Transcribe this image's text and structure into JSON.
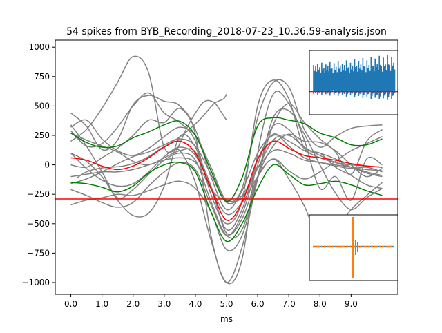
{
  "chart_data": [
    {
      "type": "line",
      "title": "54 spikes from BYB_Recording_2018-07-23_10.36.59-analysis.json",
      "xlabel": "ms",
      "ylabel": "",
      "xlim": [
        -0.5,
        10.5
      ],
      "ylim": [
        -1100,
        1060
      ],
      "xticks": [
        "0.0",
        "1.0",
        "2.0",
        "3.0",
        "4.0",
        "5.0",
        "6.0",
        "7.0",
        "8.0",
        "9.0"
      ],
      "yticks": [
        "−1000",
        "−750",
        "−500",
        "−250",
        "0",
        "250",
        "500",
        "750",
        "1000"
      ],
      "grid": false,
      "legend": "none",
      "threshold": -290,
      "colors": {
        "traces": "#808080",
        "mean": "#ff0000",
        "band": "#008000",
        "threshold": "#ff0000"
      },
      "series": [
        {
          "role": "mean",
          "x": [
            0,
            0.5,
            1,
            1.5,
            2,
            2.5,
            3,
            3.5,
            4,
            4.5,
            5,
            5.5,
            6,
            6.5,
            7,
            7.5,
            8,
            8.5,
            9,
            9.5,
            10
          ],
          "values": [
            60,
            40,
            -10,
            -40,
            -10,
            60,
            150,
            200,
            100,
            -200,
            -470,
            -320,
            50,
            200,
            140,
            80,
            60,
            40,
            10,
            -10,
            -20
          ]
        },
        {
          "role": "mean-plus-std",
          "x": [
            0,
            0.5,
            1,
            1.5,
            2,
            2.5,
            3,
            3.5,
            4,
            4.5,
            5,
            5.5,
            6,
            6.5,
            7,
            7.5,
            8,
            8.5,
            9,
            9.5,
            10
          ],
          "values": [
            270,
            190,
            150,
            160,
            230,
            280,
            340,
            370,
            250,
            -50,
            -310,
            -110,
            330,
            400,
            380,
            350,
            270,
            230,
            170,
            170,
            220
          ]
        },
        {
          "role": "mean-minus-std",
          "x": [
            0,
            0.5,
            1,
            1.5,
            2,
            2.5,
            3,
            3.5,
            4,
            4.5,
            5,
            5.5,
            6,
            6.5,
            7,
            7.5,
            8,
            8.5,
            9,
            9.5,
            10
          ],
          "values": [
            -150,
            -160,
            -190,
            -230,
            -180,
            -70,
            0,
            20,
            -60,
            -400,
            -650,
            -500,
            -200,
            0,
            -80,
            -170,
            -160,
            -140,
            -170,
            -220,
            -260
          ]
        }
      ],
      "traces": [
        [
          290,
          160,
          180,
          320,
          500,
          610,
          440,
          360,
          200,
          -250,
          -500,
          -300,
          500,
          720,
          560,
          140,
          100,
          -20,
          -90,
          -170,
          -200
        ],
        [
          440,
          330,
          130,
          210,
          510,
          590,
          540,
          500,
          260,
          -600,
          -1000,
          -800,
          100,
          600,
          520,
          210,
          -200,
          -100,
          -300,
          50,
          0
        ],
        [
          200,
          300,
          480,
          700,
          920,
          780,
          150,
          120,
          -150,
          -640,
          -1000,
          -700,
          -120,
          340,
          520,
          360,
          220,
          110,
          -80,
          200,
          300
        ],
        [
          340,
          160,
          -60,
          -280,
          -210,
          -80,
          40,
          100,
          40,
          -310,
          -600,
          -550,
          -100,
          160,
          260,
          200,
          190,
          120,
          0,
          -100,
          -30
        ],
        [
          100,
          30,
          -100,
          -300,
          -430,
          -410,
          -180,
          240,
          150,
          -200,
          -300,
          -280,
          -30,
          210,
          250,
          150,
          80,
          20,
          -20,
          -60,
          -90
        ],
        [
          100,
          -30,
          -130,
          -180,
          -160,
          -60,
          70,
          150,
          80,
          -200,
          -550,
          -380,
          40,
          260,
          160,
          60,
          20,
          -10,
          -30,
          -20,
          -60
        ],
        [
          -210,
          -260,
          -320,
          -360,
          -320,
          -180,
          -60,
          20,
          -40,
          -340,
          -600,
          -420,
          0,
          330,
          300,
          140,
          100,
          50,
          -20,
          -70,
          -100
        ],
        [
          -340,
          -300,
          -280,
          -250,
          -260,
          -220,
          -170,
          -140,
          -200,
          -400,
          -720,
          -600,
          -100,
          400,
          460,
          260,
          0,
          -240,
          -380,
          -280,
          -200
        ],
        [
          320,
          380,
          220,
          120,
          80,
          140,
          240,
          320,
          250,
          -20,
          -300,
          -200,
          400,
          700,
          660,
          300,
          150,
          240,
          310,
          330,
          340
        ],
        [
          -100,
          -80,
          -60,
          -60,
          -40,
          0,
          40,
          60,
          20,
          -200,
          -420,
          -320,
          -100,
          50,
          -120,
          -350,
          -650,
          -560,
          -380,
          -260,
          -150
        ],
        [
          0,
          -20,
          60,
          140,
          250,
          380,
          360,
          480,
          300,
          -100,
          -380,
          -220,
          100,
          250,
          200,
          120,
          60,
          20,
          0,
          -10,
          -20
        ],
        [
          -160,
          -120,
          -60,
          10,
          70,
          110,
          170,
          220,
          160,
          -80,
          -320,
          -260,
          -30,
          120,
          100,
          40,
          20,
          0,
          -20,
          -40,
          -50
        ],
        [
          270,
          210,
          160,
          110,
          30,
          0,
          60,
          120,
          110,
          -180,
          -580,
          -460,
          -100,
          50,
          -50,
          -120,
          -60,
          30,
          120,
          180,
          240
        ]
      ],
      "partial_traces": [
        {
          "x": [
            0.2,
            0.5,
            0.9,
            1.3,
            1.7,
            2.1,
            2.5,
            2.9,
            3.3,
            3.8,
            4.2,
            4.6,
            4.9,
            5.0
          ],
          "values": [
            -110,
            -60,
            -30,
            -20,
            -10,
            20,
            70,
            140,
            200,
            300,
            400,
            520,
            560,
            600
          ]
        },
        {
          "x": [
            3.4,
            3.7,
            4.0,
            4.3,
            4.6,
            4.8,
            5.0
          ],
          "values": [
            120,
            300,
            440,
            540,
            530,
            460,
            380
          ]
        }
      ]
    },
    {
      "type": "line",
      "role": "inset-recording",
      "series": [
        {
          "values": [
            0.62,
            0.58,
            0.66,
            0.54,
            0.7,
            0.52,
            0.64,
            0.6,
            0.72,
            0.5,
            0.68,
            0.56,
            0.74,
            0.58,
            0.66,
            0.62,
            0.78,
            0.54,
            0.7,
            0.6,
            0.82,
            0.58,
            0.74,
            0.64,
            0.86,
            0.56,
            0.78,
            0.62,
            0.9,
            0.6,
            0.84,
            0.66,
            0.94,
            0.58,
            0.88,
            0.64,
            0.96,
            0.62,
            0.9,
            0.7
          ]
        }
      ],
      "threshold": 0.36
    },
    {
      "type": "line",
      "role": "inset-spike-overlay",
      "series": [
        {
          "name": "",
          "color": "#1f77b4"
        },
        {
          "name": "",
          "color": "#ff7f0e"
        }
      ]
    }
  ]
}
